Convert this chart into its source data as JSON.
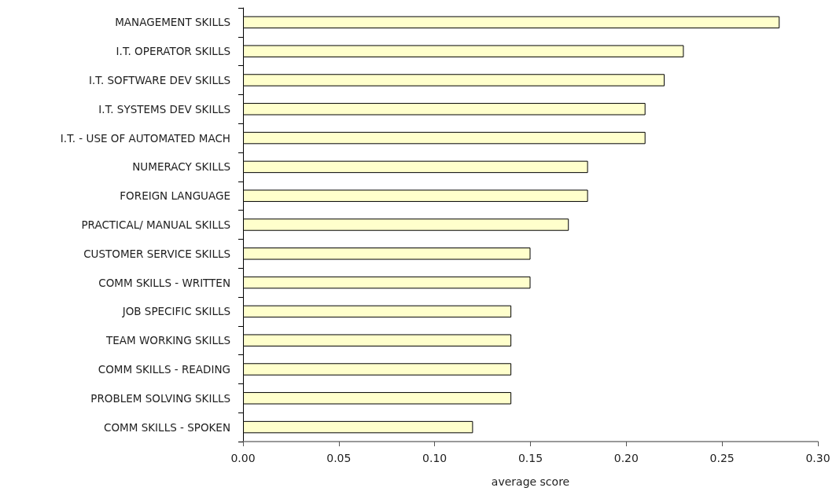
{
  "chart_data": {
    "type": "bar",
    "orientation": "horizontal",
    "xlabel": "average score",
    "categories": [
      "MANAGEMENT SKILLS",
      "I.T. OPERATOR SKILLS",
      "I.T. SOFTWARE DEV SKILLS",
      "I.T. SYSTEMS DEV SKILLS",
      "I.T. - USE OF AUTOMATED MACH",
      "NUMERACY SKILLS",
      "FOREIGN LANGUAGE",
      "PRACTICAL/ MANUAL SKILLS",
      "CUSTOMER SERVICE SKILLS",
      "COMM SKILLS - WRITTEN",
      "JOB SPECIFIC SKILLS",
      "TEAM WORKING SKILLS",
      "COMM SKILLS - READING",
      "PROBLEM SOLVING SKILLS",
      "COMM SKILLS - SPOKEN"
    ],
    "values": [
      0.28,
      0.23,
      0.22,
      0.21,
      0.21,
      0.18,
      0.18,
      0.17,
      0.15,
      0.15,
      0.14,
      0.14,
      0.14,
      0.14,
      0.12
    ],
    "color": "#ffffcc",
    "xlim": [
      0,
      0.3
    ],
    "xticks": [
      {
        "value": 0,
        "label": "0.00"
      },
      {
        "value": 0.05,
        "label": "0.05"
      },
      {
        "value": 0.1,
        "label": "0.10"
      },
      {
        "value": 0.15,
        "label": "0.15"
      },
      {
        "value": 0.2,
        "label": "0.20"
      },
      {
        "value": 0.25,
        "label": "0.25"
      },
      {
        "value": 0.3,
        "label": "0.30"
      }
    ],
    "grid": false
  }
}
